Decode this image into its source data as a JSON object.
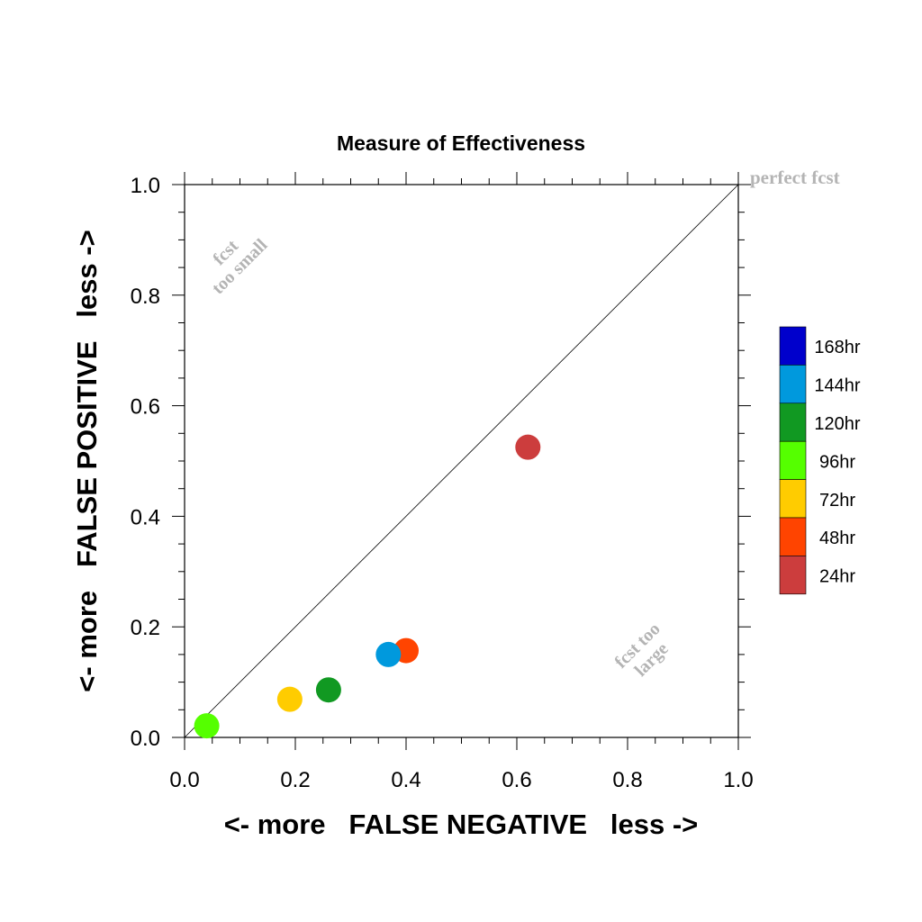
{
  "chart_data": {
    "type": "scatter",
    "title": "Measure of Effectiveness",
    "xlabel": "<- more   FALSE NEGATIVE   less ->",
    "ylabel": "<- more   FALSE POSITIVE   less ->",
    "xlim": [
      0,
      1
    ],
    "ylim": [
      0,
      1
    ],
    "x_ticks": [
      "0.0",
      "0.2",
      "0.4",
      "0.6",
      "0.8",
      "1.0"
    ],
    "y_ticks": [
      "0.0",
      "0.2",
      "0.4",
      "0.6",
      "0.8",
      "1.0"
    ],
    "grid": false,
    "reference_line": {
      "from": [
        0,
        0
      ],
      "to": [
        1,
        1
      ]
    },
    "annotations": {
      "perfect": "perfect fcst",
      "too_small_line1": "fcst",
      "too_small_line2": "too small",
      "too_large_line1": "fcst too",
      "too_large_line2": "large"
    },
    "legend_position": "right",
    "legend": [
      {
        "label": "168hr",
        "color": "#0000cc"
      },
      {
        "label": "144hr",
        "color": "#0099dd"
      },
      {
        "label": "120hr",
        "color": "#119922"
      },
      {
        "label": "96hr",
        "color": "#55ff00"
      },
      {
        "label": "72hr",
        "color": "#ffcc00"
      },
      {
        "label": "48hr",
        "color": "#ff4400"
      },
      {
        "label": "24hr",
        "color": "#cc3d3d"
      }
    ],
    "points": [
      {
        "series": "24hr",
        "x": 0.62,
        "y": 0.525
      },
      {
        "series": "48hr",
        "x": 0.4,
        "y": 0.157
      },
      {
        "series": "72hr",
        "x": 0.19,
        "y": 0.069
      },
      {
        "series": "96hr",
        "x": 0.04,
        "y": 0.021
      },
      {
        "series": "120hr",
        "x": 0.26,
        "y": 0.086
      },
      {
        "series": "144hr",
        "x": 0.368,
        "y": 0.15
      }
    ],
    "colors": {
      "axis": "#000000",
      "annotation": "#b4b4b4"
    }
  }
}
